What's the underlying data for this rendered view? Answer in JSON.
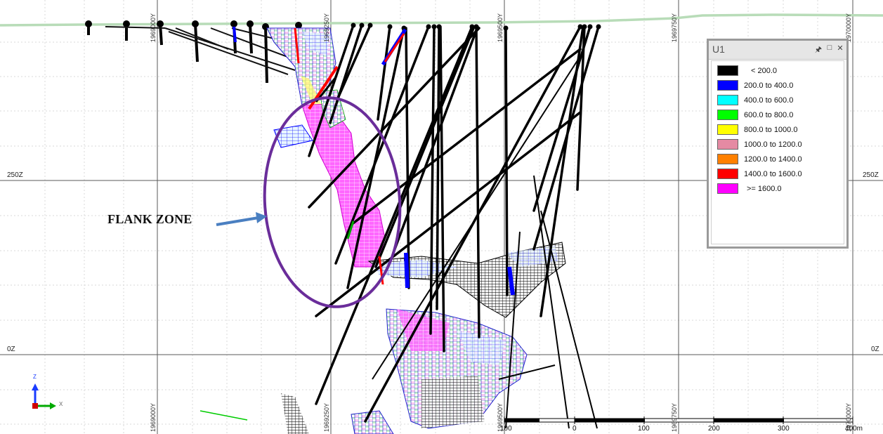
{
  "annotation": {
    "label": "FLANK ZONE"
  },
  "section": {
    "z_labels": [
      "250Z",
      "250Z",
      "0Z",
      "0Z"
    ],
    "y_labels_top": [
      "1969000Y",
      "1969250Y",
      "1969500Y",
      "1969750Y",
      "1970000Y"
    ],
    "y_labels_bottom": [
      "1969000Y",
      "1969250Y",
      "1969500Y",
      "1969750Y",
      "1970000Y"
    ]
  },
  "legend": {
    "title": "U1",
    "pin_icon": "pin-icon",
    "restore_icon": "restore-icon",
    "close_icon": "close-icon",
    "items": [
      {
        "label": "< 200.0",
        "color": "#000000"
      },
      {
        "label": "200.0 to 400.0",
        "color": "#0000ff"
      },
      {
        "label": "400.0 to 600.0",
        "color": "#00ffff"
      },
      {
        "label": "600.0 to 800.0",
        "color": "#00ff00"
      },
      {
        "label": "800.0 to 1000.0",
        "color": "#ffff00"
      },
      {
        "label": "1000.0 to 1200.0",
        "color": "#e58aa3"
      },
      {
        "label": "1200.0 to 1400.0",
        "color": "#ff8000"
      },
      {
        "label": "1400.0 to 1600.0",
        "color": "#ff0000"
      },
      {
        "label": ">= 1600.0",
        "color": "#ff00ff"
      }
    ]
  },
  "scale_bar": {
    "labels": [
      "100",
      "0",
      "100",
      "200",
      "300",
      "400m"
    ]
  },
  "axes_widget": {
    "z_label": "Z",
    "x_label": "X"
  },
  "colors": {
    "topography": "#b8dcb8",
    "ellipse": "#6a2d9a",
    "arrow": "#4a7fc1",
    "grid": "#d8d8d8"
  }
}
